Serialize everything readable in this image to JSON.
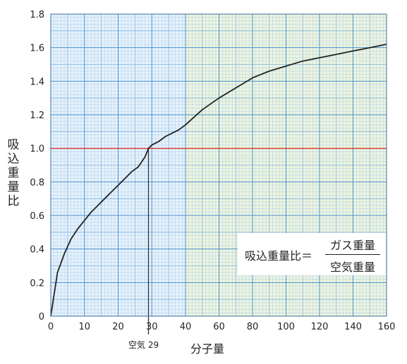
{
  "chart_data": {
    "type": "line",
    "ylabel": "吸込重量比",
    "xlabel": "分子量",
    "ylim": [
      0,
      1.8
    ],
    "x_ticks": [
      "0",
      "10",
      "20",
      "30",
      "40",
      "60",
      "80",
      "100",
      "120",
      "140",
      "160"
    ],
    "y_ticks": [
      "0",
      "0.2",
      "0.4",
      "0.6",
      "0.8",
      "1.0",
      "1.2",
      "1.4",
      "1.6",
      "1.8"
    ],
    "x_axis_note": "x axis scale changes at 40 (0–40 in steps of 10, 40–160 in steps of 20)",
    "series": [
      {
        "x": [
          0,
          2,
          4,
          6,
          8,
          10,
          12,
          14,
          16,
          18,
          20,
          22,
          24,
          26,
          28,
          29,
          30,
          32,
          34,
          36,
          38,
          40,
          50,
          60,
          70,
          80,
          90,
          100,
          110,
          120,
          130,
          140,
          150,
          160
        ],
        "y": [
          0,
          0.26,
          0.37,
          0.46,
          0.52,
          0.57,
          0.62,
          0.66,
          0.7,
          0.74,
          0.78,
          0.82,
          0.86,
          0.89,
          0.95,
          1.0,
          1.02,
          1.04,
          1.07,
          1.09,
          1.11,
          1.14,
          1.23,
          1.3,
          1.36,
          1.42,
          1.46,
          1.49,
          1.52,
          1.54,
          1.56,
          1.58,
          1.6,
          1.62
        ]
      }
    ],
    "reference_line": {
      "y": 1.0,
      "color": "#d9342b"
    },
    "marker_line": {
      "x": 29,
      "label": "空気 29"
    },
    "formula": {
      "lhs": "吸込重量比＝",
      "numerator": "ガス重量",
      "denominator": "空気重量"
    },
    "colors": {
      "grid_major": "#4a8fd0",
      "grid_minor": "#b6d4ee",
      "grid_mid": "#7eb2e0",
      "region_left_bg": "#e6f2fb",
      "region_right_bg": "#eef5dc",
      "curve": "#222222",
      "reference": "#d9342b"
    }
  }
}
